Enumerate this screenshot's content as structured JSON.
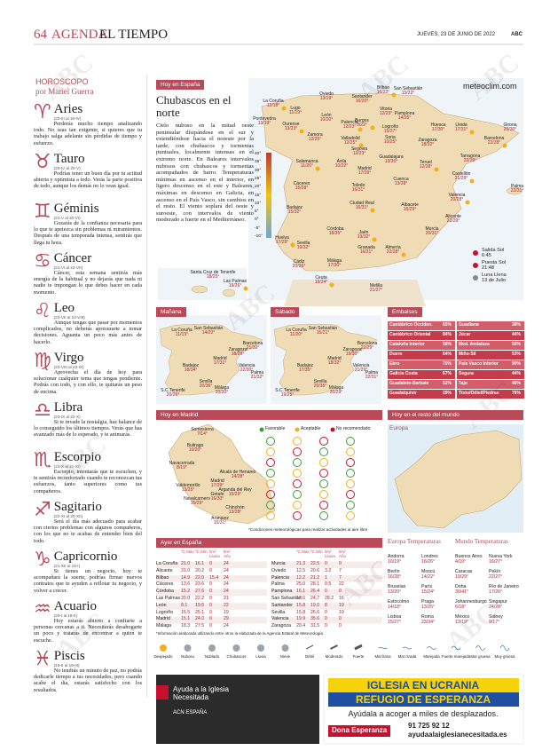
{
  "header": {
    "page": "64",
    "section": "AGENDA",
    "subsection": "EL TIEMPO",
    "date": "JUEVES, 23 DE JUNIO DE 2022",
    "brand": "ABC"
  },
  "watermark": "ABC",
  "horoscope": {
    "title": "HOROSCOPO",
    "author": "por Mariel Guerra",
    "signs": [
      {
        "symbol": "♈",
        "name": "Aries",
        "dates": "(20-III al 19-IV)",
        "text": "Perderás mucho tiempo analizando todo. No seas tan exigente, si quieres que tu trabajo salga adelante sin pérdidas de tiempo y esfuerzo."
      },
      {
        "symbol": "♉",
        "name": "Tauro",
        "dates": "(20-IV al 20-V)",
        "text": "Podrías tener un buen día por tu actitud abierta y optimista a todo. Verás la parte positiva de todo, aunque los demás no lo vean igual."
      },
      {
        "symbol": "♊",
        "name": "Géminis",
        "dates": "(21-V al 20-VI)",
        "text": "Gozarás de la confianza necesaria para lo que te apetezca sin problemas ni miramientos. Después de una temporada intensa, sentirás que llega tu hora."
      },
      {
        "symbol": "♋",
        "name": "Cáncer",
        "dates": "(21-VI al 22-VII)",
        "text": "Cáncer, esta semana sentirás más energía de la habitual y no dejarás que nada ni nadie te impongan lo que debes hacer en cada momento."
      },
      {
        "symbol": "♌",
        "name": "Leo",
        "dates": "(23-VII al 22-VIII)",
        "text": "Aunque tengas que pasar por momentos complicados, no deberás apresurarte a tomar decisiones. Aguanta un poco más antes de hacerlo."
      },
      {
        "symbol": "♍",
        "name": "Virgo",
        "dates": "(23-VIII al 22-IX)",
        "text": "Aprovecha el día de hoy para solucionar cualquier tema que tengas pendiente. Podrás con todo, y con ello, te quitarás un peso de encima."
      },
      {
        "symbol": "♎",
        "name": "Libra",
        "dates": "(23-IX al 22-X)",
        "text": "Si te invade la nostalgia, haz balance de lo conseguido los últimos tiempos. Verás que has avanzado más de lo esperado, y te animarás."
      },
      {
        "symbol": "♏",
        "name": "Escorpio",
        "dates": "(23-X al 21-XI)",
        "text": "Escorpio, intentarás que te escuchen, y te sentirás reconfortado cuando te reconozcan tus esfuerzos, tanto superiores como tus compañeros."
      },
      {
        "symbol": "♐",
        "name": "Sagitario",
        "dates": "(22-XI al 20-XII)",
        "text": "Será el día más adecuado para acabar con ciertos problemas con algunos compañeros, con los que no te acabas de entender bien del todo."
      },
      {
        "symbol": "♑",
        "name": "Capricornio",
        "dates": "(21-XII al 19-I)",
        "text": "Si tienes un negocio, hoy te acompañará la suerte, podrías firmar nuevos contratos que te ayuden a reflotar tu negocio, y volver a crecer."
      },
      {
        "symbol": "♒",
        "name": "Acuario",
        "dates": "(20-I al 18-II)",
        "text": "Hoy estarás abierto a confiarte a personas cercanas a ti. Necesitarás desahogarte un poco y tratarás de encontrar a quien te escuche."
      },
      {
        "symbol": "♓",
        "name": "Piscis",
        "dates": "(19-II al 19-III)",
        "text": "No tendrás un minuto de paz, no podrás dedicarle tiempo a tus necesidades, pero cuando acabe el día, estarás satisfecho con los resultados."
      }
    ]
  },
  "spain": {
    "label": "Hoy en España",
    "title": "Chubascos en el norte",
    "text": "Cielo nuboso en la mitad oeste peninsular disipándose en el sur y extendiéndose hacia el noreste por la tarde, con chubascos y tormentas puntuales, localmente intensas en el extremo norte. En Baleares intervalos nubosos con chubascos y tormentas acompañados de barro. Temperaturas mínimas en ascenso en el interior, en ligero descenso en el este y Baleares, máximas en descenso en Galicia, en ascenso en el País Vasco, sin cambios en el resto. El viento soplará del oeste y suroeste, con intervalos de viento moderado a fuerte en el Mediterráneo.",
    "source": "meteoclim.com",
    "scale": [
      "40°",
      "35°",
      "30°",
      "25°",
      "20°",
      "15°",
      "10°",
      "5°",
      "0°",
      "-5°",
      "-10°"
    ],
    "cities": [
      {
        "name": "La Coruña",
        "temp": "12/18°"
      },
      {
        "name": "Lugo",
        "temp": "11/19°"
      },
      {
        "name": "Pontevedra",
        "temp": "13/19°"
      },
      {
        "name": "Ourense",
        "temp": "13/23°"
      },
      {
        "name": "Oviedo",
        "temp": "13/19°"
      },
      {
        "name": "Santander",
        "temp": "16/20°"
      },
      {
        "name": "Bilbao",
        "temp": "16/22°"
      },
      {
        "name": "San Sebastián",
        "temp": "15/22°"
      },
      {
        "name": "León",
        "temp": "10/20°"
      },
      {
        "name": "Burgos",
        "temp": "9/22°"
      },
      {
        "name": "Vitoria",
        "temp": "12/23°"
      },
      {
        "name": "Pamplona",
        "temp": "14/25°"
      },
      {
        "name": "Palencia",
        "temp": "12/23°"
      },
      {
        "name": "Logroño",
        "temp": "15/27°"
      },
      {
        "name": "Huesca",
        "temp": "17/30°"
      },
      {
        "name": "Lleida",
        "temp": "17/31°"
      },
      {
        "name": "Girona",
        "temp": "20/30°"
      },
      {
        "name": "Zamora",
        "temp": "12/25°"
      },
      {
        "name": "Valladolid",
        "temp": "12/25°"
      },
      {
        "name": "Soria",
        "temp": "10/25°"
      },
      {
        "name": "Zaragoza",
        "temp": "18/32°"
      },
      {
        "name": "Barcelona",
        "temp": "22/28°"
      },
      {
        "name": "Segovia",
        "temp": "12/23°"
      },
      {
        "name": "Tarragona",
        "temp": "22/29°"
      },
      {
        "name": "Salamanca",
        "temp": "11/26°"
      },
      {
        "name": "Ávila",
        "temp": "10/22°"
      },
      {
        "name": "Guadalajara",
        "temp": "13/30°"
      },
      {
        "name": "Teruel",
        "temp": "12/28°"
      },
      {
        "name": "Madrid",
        "temp": "17/29°"
      },
      {
        "name": "Cuenca",
        "temp": "13/28°"
      },
      {
        "name": "Castellón",
        "temp": "21/29°"
      },
      {
        "name": "Cáceres",
        "temp": "15/28°"
      },
      {
        "name": "Toledo",
        "temp": "16/31°"
      },
      {
        "name": "Valencia",
        "temp": "20/28°"
      },
      {
        "name": "Palma",
        "temp": "22/31°"
      },
      {
        "name": "Badajoz",
        "temp": "15/32°"
      },
      {
        "name": "Ciudad Real",
        "temp": "16/31°"
      },
      {
        "name": "Albacete",
        "temp": "15/29°"
      },
      {
        "name": "Córdoba",
        "temp": "18/35°"
      },
      {
        "name": "Jaén",
        "temp": "19/32°"
      },
      {
        "name": "Alicante",
        "temp": "22/29°"
      },
      {
        "name": "Murcia",
        "temp": "20/31°"
      },
      {
        "name": "Huelva",
        "temp": "17/29°"
      },
      {
        "name": "Sevilla",
        "temp": "19/32°"
      },
      {
        "name": "Granada",
        "temp": "16/31°"
      },
      {
        "name": "Almería",
        "temp": "22/28°"
      },
      {
        "name": "Cádiz",
        "temp": "20/26°"
      },
      {
        "name": "Málaga",
        "temp": "17/30°"
      },
      {
        "name": "Ceuta",
        "temp": "19/24°"
      },
      {
        "name": "Melilla",
        "temp": "21/27°"
      },
      {
        "name": "Santa Cruz de Tenerife",
        "temp": "18/25°"
      },
      {
        "name": "Las Palmas",
        "temp": "19/26°"
      }
    ],
    "sun": [
      {
        "label": "Salida Sol",
        "value": "6:45"
      },
      {
        "label": "Puesta Sol",
        "value": "21:48"
      },
      {
        "label": "Luna Llena",
        "value": "13 de Julio"
      }
    ]
  },
  "tomorrow": {
    "label": "Mañana",
    "cities": [
      {
        "name": "La Coruña",
        "temp": "11/19°"
      },
      {
        "name": "San Sebastián",
        "temp": "14/20°"
      },
      {
        "name": "Barcelona",
        "temp": "21/30°"
      },
      {
        "name": "Zaragoza",
        "temp": "18/29°"
      },
      {
        "name": "Madrid",
        "temp": "17/31°"
      },
      {
        "name": "Valencia",
        "temp": "22/30°"
      },
      {
        "name": "Palma",
        "temp": "21/32°"
      },
      {
        "name": "Badajoz",
        "temp": "18/34°"
      },
      {
        "name": "Sevilla",
        "temp": "20/36°"
      },
      {
        "name": "Málaga",
        "temp": "20/30°"
      },
      {
        "name": "S.C.Tenerife",
        "temp": "20/26°"
      }
    ]
  },
  "saturday": {
    "label": "Sábado",
    "cities": [
      {
        "name": "La Coruña",
        "temp": "11/20°"
      },
      {
        "name": "San Sebastián",
        "temp": "15/21°"
      },
      {
        "name": "Barcelona",
        "temp": "22/29°"
      },
      {
        "name": "Zaragoza",
        "temp": "19/30°"
      },
      {
        "name": "Madrid",
        "temp": "18/32°"
      },
      {
        "name": "Valencia",
        "temp": "21/29°"
      },
      {
        "name": "Palma",
        "temp": "22/31°"
      },
      {
        "name": "Badajoz",
        "temp": "17/35°"
      },
      {
        "name": "Sevilla",
        "temp": "20/35°"
      },
      {
        "name": "Málaga",
        "temp": "20/29°"
      },
      {
        "name": "S.C.Tenerife",
        "temp": "19/25°"
      }
    ]
  },
  "reservoirs": {
    "label": "Embalses",
    "items": [
      {
        "name": "Cantábrico Occiden.",
        "value": "65%"
      },
      {
        "name": "Guadiana",
        "value": "38%"
      },
      {
        "name": "Cantábrico Oriental",
        "value": "84%"
      },
      {
        "name": "Júcar",
        "value": "44%"
      },
      {
        "name": "Cataluña Interior",
        "value": "58%"
      },
      {
        "name": "Med. Andaluza",
        "value": "50%"
      },
      {
        "name": "Duero",
        "value": "64%"
      },
      {
        "name": "Miño-Sil",
        "value": "53%"
      },
      {
        "name": "Ebro",
        "value": "70%"
      },
      {
        "name": "País Vasco Interior",
        "value": "90%"
      },
      {
        "name": "Galicia Costa",
        "value": "67%"
      },
      {
        "name": "Segura",
        "value": "44%"
      },
      {
        "name": "Guadalete-Barbate",
        "value": "52%"
      },
      {
        "name": "Tajo",
        "value": "46%"
      },
      {
        "name": "Guadalquivir",
        "value": "29%"
      },
      {
        "name": "Tinto/Odiel/Piedras",
        "value": "76%"
      }
    ]
  },
  "madrid": {
    "label": "Hoy en Madrid",
    "legend": [
      "Favorable",
      "Aceptable",
      "No recomendado"
    ],
    "note": "*Condiciones meteorológicas para realizar actividades al aire libre",
    "towns": [
      {
        "name": "Somosierra",
        "temp": "7/14°"
      },
      {
        "name": "Buitrago",
        "temp": "10/20°"
      },
      {
        "name": "Navacerrada",
        "temp": "8/19°"
      },
      {
        "name": "Alcalá de Henares",
        "temp": "14/28°"
      },
      {
        "name": "Madrid",
        "temp": "17/29°"
      },
      {
        "name": "Valdemorillo",
        "temp": "13/25°"
      },
      {
        "name": "Arganda del Rey",
        "temp": "15/29°"
      },
      {
        "name": "Getafe",
        "temp": "16/30°"
      },
      {
        "name": "Navalcarnero",
        "temp": "15/29°"
      },
      {
        "name": "Chinchón",
        "temp": "13/28°"
      },
      {
        "name": "Aranjuez",
        "temp": "15/31°"
      }
    ]
  },
  "world": {
    "label": "Hoy en el resto del mundo",
    "region": "Europa"
  },
  "yesterday": {
    "label": "Ayer en España",
    "columns": [
      "ºC Máx",
      "ºC Mín",
      "l/m² Lluvia",
      "l/m² Año"
    ],
    "rows": [
      [
        "La Coruña",
        "21.0",
        "16.1",
        "0",
        "24"
      ],
      [
        "Alicante",
        "31.0",
        "20.2",
        "0",
        "24"
      ],
      [
        "Bilbao",
        "14.9",
        "22.0",
        "15.4",
        "24"
      ],
      [
        "Cáceres",
        "13.6",
        "23.6",
        "0",
        "24"
      ],
      [
        "Córdoba",
        "15.2",
        "27.6",
        "0",
        "24"
      ],
      [
        "Las Palmas",
        "20.0",
        "22.2",
        "0",
        "21"
      ],
      [
        "León",
        "8.1",
        "19.6",
        "0",
        "22"
      ],
      [
        "Logroño",
        "16.5",
        "25.1",
        "0",
        "19"
      ],
      [
        "Madrid",
        "15.1",
        "24.0",
        "0",
        "29"
      ],
      [
        "Málaga",
        "18.3",
        "27.5",
        "0",
        "24"
      ],
      [
        "Murcia",
        "21.3",
        "22.5",
        "0",
        "0"
      ],
      [
        "Oviedo",
        "12.5",
        "20.6",
        "3.2",
        "7"
      ],
      [
        "Palencia",
        "12.2",
        "21.2",
        "1",
        "7"
      ],
      [
        "Palma",
        "25.0",
        "28.1",
        "0.5",
        "22"
      ],
      [
        "Pamplona",
        "16.1",
        "26.4",
        "0",
        "0"
      ],
      [
        "San Sebastián",
        "17.6",
        "24.7",
        "28.2",
        "16"
      ],
      [
        "Santander",
        "15.8",
        "19.0",
        "8",
        "19"
      ],
      [
        "Sevilla",
        "15.8",
        "26.6",
        "0",
        "19"
      ],
      [
        "Valencia",
        "19.9",
        "35.6",
        "0",
        "0"
      ],
      [
        "Zaragoza",
        "20.4",
        "31.5",
        "0",
        "0"
      ]
    ]
  },
  "europe": {
    "title": "Europa Temperaturas",
    "rows": [
      [
        "Andorra",
        "10/19°"
      ],
      [
        "Londres",
        "16/26°"
      ],
      [
        "Berlín",
        "16/28°"
      ],
      [
        "Moscú",
        "14/22°"
      ],
      [
        "Bruselas",
        "13/20°"
      ],
      [
        "París",
        "15/24°"
      ],
      [
        "Estocolmo",
        "14/18°"
      ],
      [
        "Praga",
        "13/25°"
      ],
      [
        "Lisboa",
        "15/27°"
      ],
      [
        "Roma",
        "23/34°"
      ]
    ]
  },
  "globe": {
    "title": "Mundo Temperaturas",
    "rows": [
      [
        "Buenos Aires",
        "4/10°"
      ],
      [
        "Nueva York",
        "16/27°"
      ],
      [
        "Caracas",
        "19/29°"
      ],
      [
        "Pekín",
        "22/27°"
      ],
      [
        "Doha",
        "30/41°"
      ],
      [
        "Río de Janeiro",
        "17/26°"
      ],
      [
        "Johannesburgo",
        "6/18°"
      ],
      [
        "Singapur",
        "24/28°"
      ],
      [
        "México",
        "13/19°"
      ],
      [
        "Sidney",
        "9/17°"
      ]
    ]
  },
  "legend": {
    "note": "*Información elaborada utilizando entre otros la elaborada de la Agencia Estatal de Meteorología",
    "items": [
      "Despejado",
      "Nuboso",
      "Nublado",
      "Chubascos",
      "Lluvia",
      "Nieve",
      "Débil",
      "Moderado",
      "Fuerte",
      "Mar llana",
      "Mar rizada",
      "Marejada",
      "Fuerte marejada",
      "Mar gruesa",
      "Muy gruesa"
    ]
  },
  "ads": {
    "left": {
      "title": "Ayuda a la Iglesia Necesitada",
      "org": "ACN ESPAÑA"
    },
    "right": {
      "headline1": "IGLESIA EN UCRANIA",
      "headline2": "REFUGIO DE ESPERANZA",
      "text": "Ayúdala a acoger a miles de desplazados.",
      "cta": "Dona Esperanza",
      "phone": "91 725 92 12",
      "url": "ayudaalaiglesianecesitada.es"
    }
  }
}
